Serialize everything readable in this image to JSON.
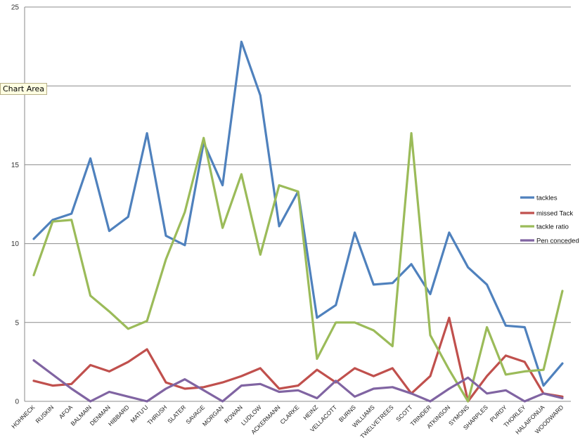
{
  "tooltip": "Chart Area",
  "chart_data": {
    "type": "line",
    "title": "",
    "xlabel": "",
    "ylabel": "",
    "ylim": [
      0,
      25
    ],
    "yticks": [
      0,
      5,
      10,
      15,
      20,
      25
    ],
    "grid": "horizontal",
    "legend_position": "right",
    "categories": [
      "HOHNECK",
      "RUSKIN",
      "AFOA",
      "BALMAIN",
      "DENMAN",
      "HIBBARD",
      "MATU'U",
      "THRUSH",
      "SLATER",
      "SAVAGE",
      "MORGAN",
      "ROWAN",
      "LUDLOW",
      "ACKERMANN",
      "CLARKE",
      "HEINZ",
      "VELLACOTT",
      "BURNS",
      "WILLIAMS",
      "TWELVETREES",
      "SCOTT",
      "TRINDER",
      "ATKINSON",
      "SYMONS",
      "SHARPLES",
      "PURDY",
      "THORLEY",
      "HALAIFONUA",
      "WOODWARD"
    ],
    "series": [
      {
        "name": "tackles",
        "color": "#4f81bd",
        "values": [
          10.3,
          11.5,
          11.9,
          15.4,
          10.8,
          11.7,
          17.0,
          10.5,
          9.9,
          16.4,
          13.7,
          22.8,
          19.4,
          11.1,
          13.3,
          5.3,
          6.1,
          10.7,
          7.4,
          7.5,
          8.7,
          6.8,
          10.7,
          8.5,
          7.4,
          4.8,
          4.7,
          1.0,
          2.4
        ]
      },
      {
        "name": "missed Tack",
        "color": "#c0504d",
        "values": [
          1.3,
          1.0,
          1.1,
          2.3,
          1.9,
          2.5,
          3.3,
          1.2,
          0.8,
          0.9,
          1.2,
          1.6,
          2.1,
          0.8,
          1.0,
          2.0,
          1.2,
          2.1,
          1.6,
          2.1,
          0.5,
          1.6,
          5.3,
          0.0,
          1.6,
          2.9,
          2.5,
          0.5,
          0.3
        ]
      },
      {
        "name": "tackle ratio",
        "color": "#9bbb59",
        "values": [
          8.0,
          11.4,
          11.5,
          6.7,
          5.7,
          4.6,
          5.1,
          9.0,
          12.0,
          16.7,
          11.0,
          14.4,
          9.3,
          13.7,
          13.3,
          2.7,
          5.0,
          5.0,
          4.5,
          3.5,
          17.0,
          4.2,
          2.0,
          0.0,
          4.7,
          1.7,
          1.9,
          2.0,
          7.0
        ]
      },
      {
        "name": "Pen conceded",
        "color": "#8064a2",
        "values": [
          2.6,
          1.7,
          0.8,
          0.0,
          0.6,
          0.3,
          0.0,
          0.8,
          1.4,
          0.7,
          0.0,
          1.0,
          1.1,
          0.6,
          0.7,
          0.2,
          1.3,
          0.3,
          0.8,
          0.9,
          0.5,
          0.0,
          0.8,
          1.5,
          0.5,
          0.7,
          0.0,
          0.5,
          0.2
        ]
      }
    ]
  }
}
